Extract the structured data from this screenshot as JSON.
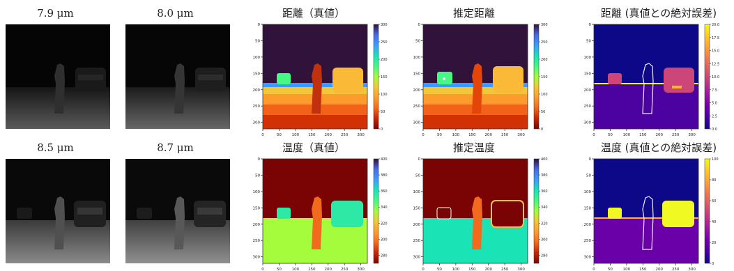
{
  "wavelengths": [
    "7.9 μm",
    "8.0 μm",
    "8.5 μm",
    "8.7 μm"
  ],
  "panels": {
    "dist_true": "距離（真値）",
    "dist_est": "推定距離",
    "dist_err": "距離 (真値との絶対誤差)",
    "temp_true": "温度（真値）",
    "temp_est": "推定温度",
    "temp_err": "温度 (真値との絶対誤差)"
  },
  "chart_data": [
    {
      "type": "heatmap",
      "title": "距離（真値）",
      "xticks": [
        0,
        50,
        100,
        150,
        200,
        250,
        300
      ],
      "yticks": [
        0,
        50,
        100,
        150,
        200,
        250,
        300
      ],
      "colorbar": {
        "colormap": "turbo_r",
        "range": [
          0,
          300
        ],
        "ticks": [
          0,
          50,
          100,
          150,
          200,
          250,
          300
        ]
      }
    },
    {
      "type": "heatmap",
      "title": "推定距離",
      "xticks": [
        0,
        50,
        100,
        150,
        200,
        250,
        300
      ],
      "yticks": [
        0,
        50,
        100,
        150,
        200,
        250,
        300
      ],
      "colorbar": {
        "colormap": "turbo_r",
        "range": [
          0,
          300
        ],
        "ticks": [
          0,
          50,
          100,
          150,
          200,
          250,
          300
        ]
      }
    },
    {
      "type": "heatmap",
      "title": "距離 (真値との絶対誤差)",
      "xticks": [
        0,
        50,
        100,
        150,
        200,
        250,
        300
      ],
      "yticks": [
        0,
        50,
        100,
        150,
        200,
        250,
        300
      ],
      "colorbar": {
        "colormap": "plasma",
        "range": [
          0,
          20
        ],
        "ticks": [
          0.0,
          2.5,
          5.0,
          7.5,
          10.0,
          12.5,
          15.0,
          17.5,
          20.0
        ]
      }
    },
    {
      "type": "heatmap",
      "title": "温度（真値）",
      "xticks": [
        0,
        50,
        100,
        150,
        200,
        250,
        300
      ],
      "yticks": [
        0,
        50,
        100,
        150,
        200,
        250,
        300
      ],
      "colorbar": {
        "colormap": "turbo_r",
        "range": [
          270,
          400
        ],
        "ticks": [
          280,
          300,
          320,
          340,
          360,
          380,
          400
        ]
      }
    },
    {
      "type": "heatmap",
      "title": "推定温度",
      "xticks": [
        0,
        50,
        100,
        150,
        200,
        250,
        300
      ],
      "yticks": [
        0,
        50,
        100,
        150,
        200,
        250,
        300
      ],
      "colorbar": {
        "colormap": "turbo_r",
        "range": [
          270,
          400
        ],
        "ticks": [
          280,
          300,
          320,
          340,
          360,
          380,
          400
        ]
      }
    },
    {
      "type": "heatmap",
      "title": "温度 (真値との絶対誤差)",
      "xticks": [
        0,
        50,
        100,
        150,
        200,
        250,
        300
      ],
      "yticks": [
        0,
        50,
        100,
        150,
        200,
        250,
        300
      ],
      "colorbar": {
        "colormap": "plasma",
        "range": [
          0,
          100
        ],
        "ticks": [
          0,
          20,
          40,
          60,
          80,
          100
        ]
      }
    }
  ],
  "colors": {
    "dist_sky": "#30123b",
    "dist_band": "#3e9bfe",
    "dist_car_small": "#46f884",
    "dist_person": "#c1310d",
    "dist_car_big": "#fbb938",
    "temp_bg": "#7a0403",
    "temp_ground": "#a4fc3c",
    "temp_car": "#2ee9a5",
    "temp_person": "#f26a1e",
    "temp_est_ground": "#1ae4b6",
    "err_low": "#0d0887",
    "err_mid": "#6a00a8",
    "err_high": "#f0f921",
    "err_pink": "#cc4778",
    "err_orange": "#fdb42f"
  }
}
